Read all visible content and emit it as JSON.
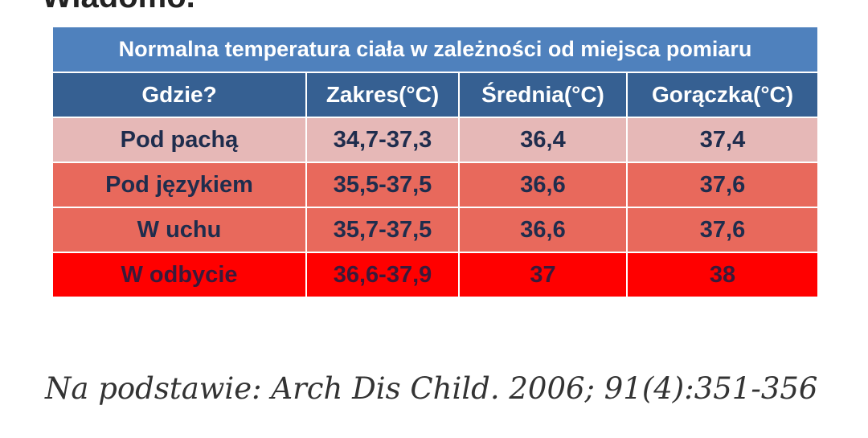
{
  "cut_heading": "Wiadomo.",
  "table": {
    "title": "Normalna temperatura ciała w zależności od miejsca pomiaru",
    "headers": [
      "Gdzie?",
      "Zakres(°C)",
      "Średnia(°C)",
      "Gorączka(°C)"
    ],
    "rows": [
      {
        "place": "Pod pachą",
        "range": "34,7-37,3",
        "average": "36,4",
        "fever": "37,4",
        "color": "#e6b8b7"
      },
      {
        "place": "Pod językiem",
        "range": "35,5-37,5",
        "average": "36,6",
        "fever": "37,6",
        "color": "#e8695c"
      },
      {
        "place": "W uchu",
        "range": "35,7-37,5",
        "average": "36,6",
        "fever": "37,6",
        "color": "#e8695c"
      },
      {
        "place": "W odbycie",
        "range": "36,6-37,9",
        "average": "37",
        "fever": "38",
        "color": "#ff0000"
      }
    ]
  },
  "source": "Na podstawie: Arch Dis Child. 2006; 91(4):351-356",
  "colors": {
    "title_bg": "#4f81bd",
    "header_bg": "#366092"
  }
}
